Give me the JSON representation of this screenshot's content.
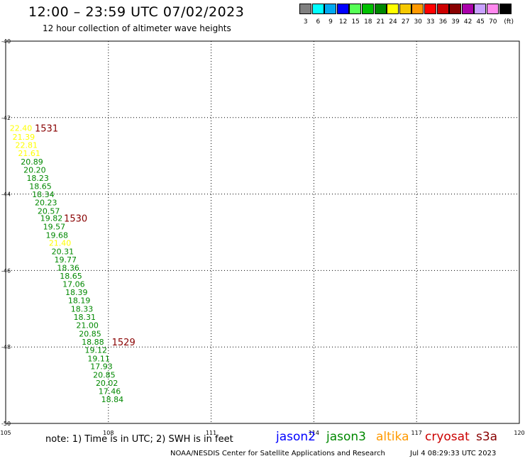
{
  "header": {
    "title": "12:00 – 23:59 UTC 07/02/2023",
    "subtitle": "12 hour collection of altimeter wave heights"
  },
  "color_scale": {
    "unit_label": "(ft)",
    "items": [
      {
        "label": "3",
        "color": "#808080"
      },
      {
        "label": "6",
        "color": "#00ffff"
      },
      {
        "label": "9",
        "color": "#00a8f0"
      },
      {
        "label": "12",
        "color": "#0000ff"
      },
      {
        "label": "15",
        "color": "#55ff55"
      },
      {
        "label": "18",
        "color": "#00c000"
      },
      {
        "label": "21",
        "color": "#008800"
      },
      {
        "label": "24",
        "color": "#ffff00"
      },
      {
        "label": "27",
        "color": "#f5c800"
      },
      {
        "label": "30",
        "color": "#ff9900"
      },
      {
        "label": "33",
        "color": "#ff0000"
      },
      {
        "label": "36",
        "color": "#cc0000"
      },
      {
        "label": "39",
        "color": "#880000"
      },
      {
        "label": "42",
        "color": "#aa00aa"
      },
      {
        "label": "45",
        "color": "#c8a0ff"
      },
      {
        "label": "70",
        "color": "#ff88ee"
      },
      {
        "label": "",
        "color": "#000000"
      }
    ]
  },
  "footer": {
    "note": "note:  1) Time is in UTC;  2) SWH is in feet",
    "satellites": [
      {
        "name": "jason2",
        "color": "#0000ff"
      },
      {
        "name": "jason3",
        "color": "#008800"
      },
      {
        "name": "altika",
        "color": "#ff9900"
      },
      {
        "name": "cryosat",
        "color": "#cc0000"
      },
      {
        "name": "s3a",
        "color": "#880000"
      }
    ],
    "credit": "NOAA/NESDIS Center for Satellite Applications and Research",
    "generated": "Jul  4 08:29:33 UTC 2023"
  },
  "chart_data": {
    "type": "scatter",
    "xlim": [
      105,
      120
    ],
    "ylim": [
      -50,
      -40
    ],
    "x_ticks": [
      105,
      108,
      111,
      114,
      117,
      120
    ],
    "y_ticks": [
      -40,
      -42,
      -44,
      -46,
      -48,
      -50
    ],
    "x_tick_labels": [
      "105",
      "108",
      "111",
      "114",
      "117",
      "120"
    ],
    "y_tick_labels": [
      "-40",
      "-42",
      "-44",
      "-46",
      "-48",
      "-50"
    ],
    "grid": true,
    "points": [
      {
        "lon": 105.12,
        "lat": -42.27,
        "value": "22.40",
        "color": "#ffff00"
      },
      {
        "lon": 105.2,
        "lat": -42.5,
        "value": "21.39",
        "color": "#ffff00"
      },
      {
        "lon": 105.28,
        "lat": -42.72,
        "value": "22.81",
        "color": "#ffff00"
      },
      {
        "lon": 105.36,
        "lat": -42.93,
        "value": "21.61",
        "color": "#ffff00"
      },
      {
        "lon": 105.44,
        "lat": -43.15,
        "value": "20.89",
        "color": "#008800"
      },
      {
        "lon": 105.52,
        "lat": -43.37,
        "value": "20.20",
        "color": "#008800"
      },
      {
        "lon": 105.61,
        "lat": -43.58,
        "value": "18.23",
        "color": "#008800"
      },
      {
        "lon": 105.69,
        "lat": -43.79,
        "value": "18.65",
        "color": "#008800"
      },
      {
        "lon": 105.77,
        "lat": -44.01,
        "value": "18.34",
        "color": "#008800"
      },
      {
        "lon": 105.85,
        "lat": -44.22,
        "value": "20.23",
        "color": "#008800"
      },
      {
        "lon": 105.93,
        "lat": -44.44,
        "value": "20.57",
        "color": "#008800"
      },
      {
        "lon": 106.01,
        "lat": -44.63,
        "value": "19.82",
        "color": "#008800"
      },
      {
        "lon": 106.09,
        "lat": -44.85,
        "value": "19.57",
        "color": "#008800"
      },
      {
        "lon": 106.17,
        "lat": -45.07,
        "value": "19.68",
        "color": "#008800"
      },
      {
        "lon": 106.26,
        "lat": -45.28,
        "value": "21.40",
        "color": "#ffff00"
      },
      {
        "lon": 106.34,
        "lat": -45.5,
        "value": "20.31",
        "color": "#008800"
      },
      {
        "lon": 106.42,
        "lat": -45.71,
        "value": "19.77",
        "color": "#008800"
      },
      {
        "lon": 106.5,
        "lat": -45.93,
        "value": "18.36",
        "color": "#008800"
      },
      {
        "lon": 106.58,
        "lat": -46.14,
        "value": "18.65",
        "color": "#008800"
      },
      {
        "lon": 106.66,
        "lat": -46.35,
        "value": "17.06",
        "color": "#008800"
      },
      {
        "lon": 106.74,
        "lat": -46.57,
        "value": "18.39",
        "color": "#008800"
      },
      {
        "lon": 106.82,
        "lat": -46.78,
        "value": "18.19",
        "color": "#008800"
      },
      {
        "lon": 106.9,
        "lat": -47.0,
        "value": "18.33",
        "color": "#008800"
      },
      {
        "lon": 106.98,
        "lat": -47.22,
        "value": "18.31",
        "color": "#008800"
      },
      {
        "lon": 107.06,
        "lat": -47.43,
        "value": "21.00",
        "color": "#008800"
      },
      {
        "lon": 107.14,
        "lat": -47.65,
        "value": "20.85",
        "color": "#008800"
      },
      {
        "lon": 107.22,
        "lat": -47.87,
        "value": "18.88",
        "color": "#008800"
      },
      {
        "lon": 107.31,
        "lat": -48.08,
        "value": "19.12",
        "color": "#008800"
      },
      {
        "lon": 107.39,
        "lat": -48.3,
        "value": "19.11",
        "color": "#008800"
      },
      {
        "lon": 107.47,
        "lat": -48.51,
        "value": "17.93",
        "color": "#008800"
      },
      {
        "lon": 107.55,
        "lat": -48.73,
        "value": "20.85",
        "color": "#008800"
      },
      {
        "lon": 107.63,
        "lat": -48.94,
        "value": "20.02",
        "color": "#008800"
      },
      {
        "lon": 107.71,
        "lat": -49.16,
        "value": "17.46",
        "color": "#008800"
      },
      {
        "lon": 107.79,
        "lat": -49.37,
        "value": "18.84",
        "color": "#008800"
      }
    ],
    "time_labels": [
      {
        "lon": 105.85,
        "lat": -42.27,
        "label": "1531",
        "color": "#880000"
      },
      {
        "lon": 106.7,
        "lat": -44.63,
        "label": "1530",
        "color": "#880000"
      },
      {
        "lon": 108.1,
        "lat": -47.87,
        "label": "1529",
        "color": "#880000"
      }
    ]
  }
}
